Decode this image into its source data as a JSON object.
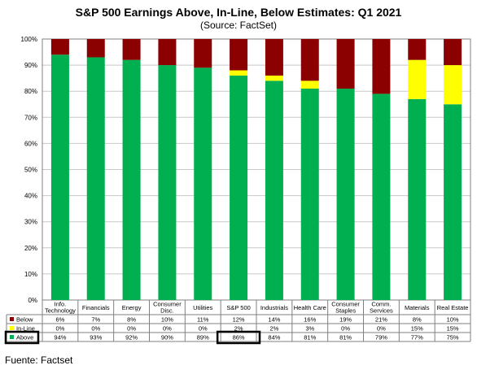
{
  "chart_data": {
    "type": "bar",
    "stacked": true,
    "title": "S&P 500 Earnings Above, In-Line, Below Estimates: Q1 2021",
    "subtitle": "(Source: FactSet)",
    "categories": [
      [
        "Info.",
        "Technology"
      ],
      [
        "Financials"
      ],
      [
        "Energy"
      ],
      [
        "Consumer",
        "Disc."
      ],
      [
        "Utilities"
      ],
      [
        "S&P 500"
      ],
      [
        "Industrials"
      ],
      [
        "Health Care"
      ],
      [
        "Consumer",
        "Staples"
      ],
      [
        "Comm.",
        "Services"
      ],
      [
        "Materials"
      ],
      [
        "Real Estate"
      ]
    ],
    "series": [
      {
        "name": "Above",
        "color": "#00b050",
        "values": [
          94,
          93,
          92,
          90,
          89,
          86,
          84,
          81,
          81,
          79,
          77,
          75
        ],
        "labels": [
          "94%",
          "93%",
          "92%",
          "90%",
          "89%",
          "86%",
          "84%",
          "81%",
          "81%",
          "79%",
          "77%",
          "75%"
        ]
      },
      {
        "name": "In-Line",
        "color": "#ffff00",
        "values": [
          0,
          0,
          0,
          0,
          0,
          2,
          2,
          3,
          0,
          0,
          15,
          15
        ],
        "labels": [
          "0%",
          "0%",
          "0%",
          "0%",
          "0%",
          "2%",
          "2%",
          "3%",
          "0%",
          "0%",
          "15%",
          "15%"
        ]
      },
      {
        "name": "Below",
        "color": "#8b0000",
        "values": [
          6,
          7,
          8,
          10,
          11,
          12,
          14,
          16,
          19,
          21,
          8,
          10
        ],
        "labels": [
          "6%",
          "7%",
          "8%",
          "10%",
          "11%",
          "12%",
          "14%",
          "16%",
          "19%",
          "21%",
          "8%",
          "10%"
        ]
      }
    ],
    "table_row_order": [
      "Below",
      "In-Line",
      "Above"
    ],
    "yticks": [
      "0%",
      "10%",
      "20%",
      "30%",
      "40%",
      "50%",
      "60%",
      "70%",
      "80%",
      "90%",
      "100%"
    ],
    "ylim": [
      0,
      100
    ],
    "grid": true,
    "legend": "data-table-left",
    "highlight_boxes": [
      "Above",
      "S&P 500 Above"
    ]
  },
  "footer": "Fuente: Factset"
}
